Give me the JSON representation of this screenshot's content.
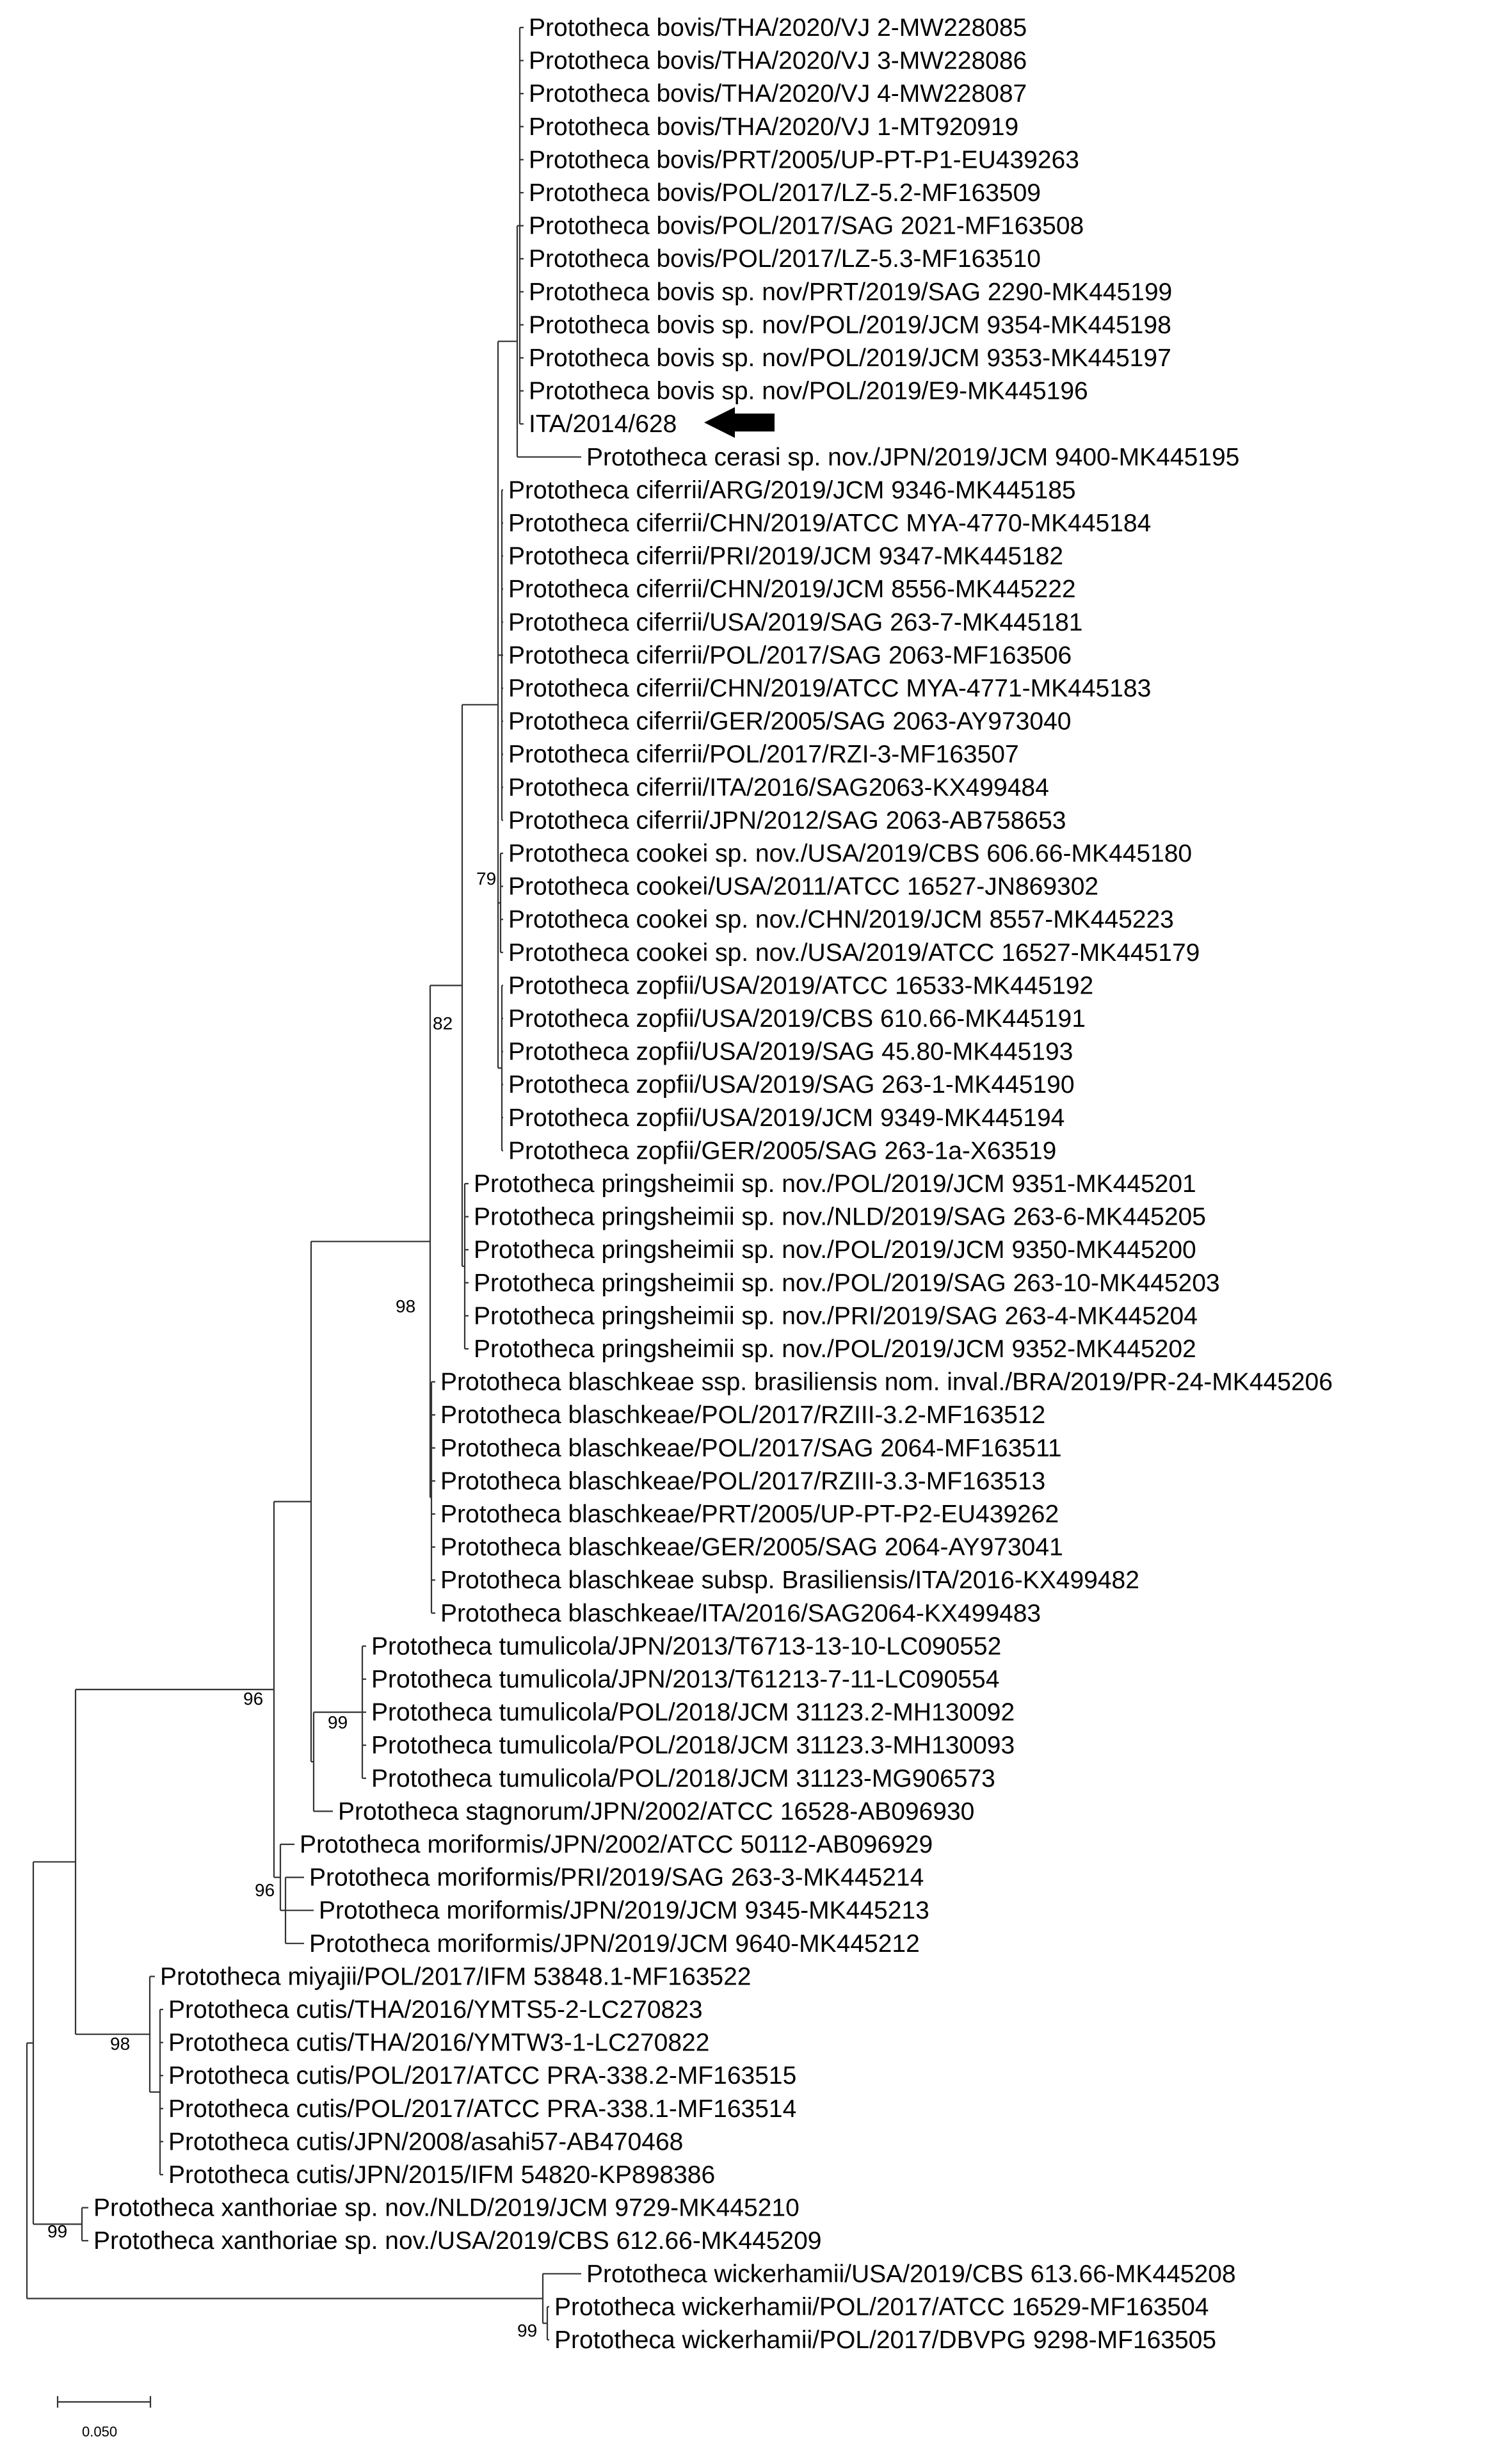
{
  "leaves": [
    "Prototheca bovis/THA/2020/VJ 2-MW228085",
    "Prototheca bovis/THA/2020/VJ 3-MW228086",
    "Prototheca bovis/THA/2020/VJ 4-MW228087",
    "Prototheca bovis/THA/2020/VJ 1-MT920919",
    "Prototheca bovis/PRT/2005/UP-PT-P1-EU439263",
    "Prototheca bovis/POL/2017/LZ-5.2-MF163509",
    "Prototheca bovis/POL/2017/SAG 2021-MF163508",
    "Prototheca bovis/POL/2017/LZ-5.3-MF163510",
    "Prototheca bovis sp. nov/PRT/2019/SAG 2290-MK445199",
    "Prototheca bovis sp. nov/POL/2019/JCM 9354-MK445198",
    "Prototheca bovis sp. nov/POL/2019/JCM 9353-MK445197",
    "Prototheca bovis sp. nov/POL/2019/E9-MK445196",
    "ITA/2014/628",
    "Prototheca cerasi sp. nov./JPN/2019/JCM 9400-MK445195",
    "Prototheca ciferrii/ARG/2019/JCM 9346-MK445185",
    "Prototheca ciferrii/CHN/2019/ATCC MYA-4770-MK445184",
    "Prototheca ciferrii/PRI/2019/JCM 9347-MK445182",
    "Prototheca ciferrii/CHN/2019/JCM 8556-MK445222",
    "Prototheca ciferrii/USA/2019/SAG 263-7-MK445181",
    "Prototheca ciferrii/POL/2017/SAG 2063-MF163506",
    "Prototheca ciferrii/CHN/2019/ATCC MYA-4771-MK445183",
    "Prototheca ciferrii/GER/2005/SAG 2063-AY973040",
    "Prototheca ciferrii/POL/2017/RZI-3-MF163507",
    "Prototheca ciferrii/ITA/2016/SAG2063-KX499484",
    "Prototheca ciferrii/JPN/2012/SAG 2063-AB758653",
    "Prototheca cookei sp. nov./USA/2019/CBS 606.66-MK445180",
    "Prototheca cookei/USA/2011/ATCC 16527-JN869302",
    "Prototheca cookei sp. nov./CHN/2019/JCM 8557-MK445223",
    "Prototheca cookei sp. nov./USA/2019/ATCC 16527-MK445179",
    "Prototheca zopfii/USA/2019/ATCC 16533-MK445192",
    "Prototheca zopfii/USA/2019/CBS 610.66-MK445191",
    "Prototheca zopfii/USA/2019/SAG 45.80-MK445193",
    "Prototheca zopfii/USA/2019/SAG 263-1-MK445190",
    "Prototheca zopfii/USA/2019/JCM 9349-MK445194",
    "Prototheca zopfii/GER/2005/SAG 263-1a-X63519",
    "Prototheca pringsheimii sp. nov./POL/2019/JCM 9351-MK445201",
    "Prototheca pringsheimii sp. nov./NLD/2019/SAG 263-6-MK445205",
    "Prototheca pringsheimii sp. nov./POL/2019/JCM 9350-MK445200",
    "Prototheca pringsheimii sp. nov./POL/2019/SAG 263-10-MK445203",
    "Prototheca pringsheimii sp. nov./PRI/2019/SAG 263-4-MK445204",
    "Prototheca pringsheimii sp. nov./POL/2019/JCM 9352-MK445202",
    "Prototheca blaschkeae ssp. brasiliensis nom. inval./BRA/2019/PR-24-MK445206",
    "Prototheca blaschkeae/POL/2017/RZIII-3.2-MF163512",
    "Prototheca blaschkeae/POL/2017/SAG 2064-MF163511",
    "Prototheca blaschkeae/POL/2017/RZIII-3.3-MF163513",
    "Prototheca blaschkeae/PRT/2005/UP-PT-P2-EU439262",
    "Prototheca blaschkeae/GER/2005/SAG 2064-AY973041",
    "Prototheca blaschkeae subsp. Brasiliensis/ITA/2016-KX499482",
    "Prototheca blaschkeae/ITA/2016/SAG2064-KX499483",
    "Prototheca tumulicola/JPN/2013/T6713-13-10-LC090552",
    "Prototheca tumulicola/JPN/2013/T61213-7-11-LC090554",
    "Prototheca tumulicola/POL/2018/JCM 31123.2-MH130092",
    "Prototheca tumulicola/POL/2018/JCM 31123.3-MH130093",
    "Prototheca tumulicola/POL/2018/JCM 31123-MG906573",
    "Prototheca stagnorum/JPN/2002/ATCC 16528-AB096930",
    "Prototheca moriformis/JPN/2002/ATCC 50112-AB096929",
    "Prototheca moriformis/PRI/2019/SAG 263-3-MK445214",
    "Prototheca moriformis/JPN/2019/JCM 9345-MK445213",
    "Prototheca moriformis/JPN/2019/JCM 9640-MK445212",
    "Prototheca miyajii/POL/2017/IFM 53848.1-MF163522",
    "Prototheca cutis/THA/2016/YMTS5-2-LC270823",
    "Prototheca cutis/THA/2016/YMTW3-1-LC270822",
    "Prototheca cutis/POL/2017/ATCC PRA-338.2-MF163515",
    "Prototheca cutis/POL/2017/ATCC PRA-338.1-MF163514",
    "Prototheca cutis/JPN/2008/asahi57-AB470468",
    "Prototheca cutis/JPN/2015/IFM 54820-KP898386",
    "Prototheca xanthoriae sp. nov./NLD/2019/JCM 9729-MK445210",
    "Prototheca xanthoriae sp. nov./USA/2019/CBS 612.66-MK445209",
    "Prototheca wickerhamii/USA/2019/CBS 613.66-MK445208",
    "Prototheca wickerhamii/POL/2017/ATCC 16529-MF163504",
    "Prototheca wickerhamii/POL/2017/DBVPG 9298-MF163505"
  ],
  "bootstrap": [
    "79",
    "82",
    "98",
    "96",
    "99",
    "96",
    "98",
    "99",
    "99"
  ],
  "scale_bar": {
    "label": "0.050"
  },
  "colors": {
    "branch": "#333333",
    "text": "#000000",
    "arrow": "#000000"
  },
  "highlight": {
    "leaf": "ITA/2014/628",
    "marker": "left-pointing arrow"
  }
}
